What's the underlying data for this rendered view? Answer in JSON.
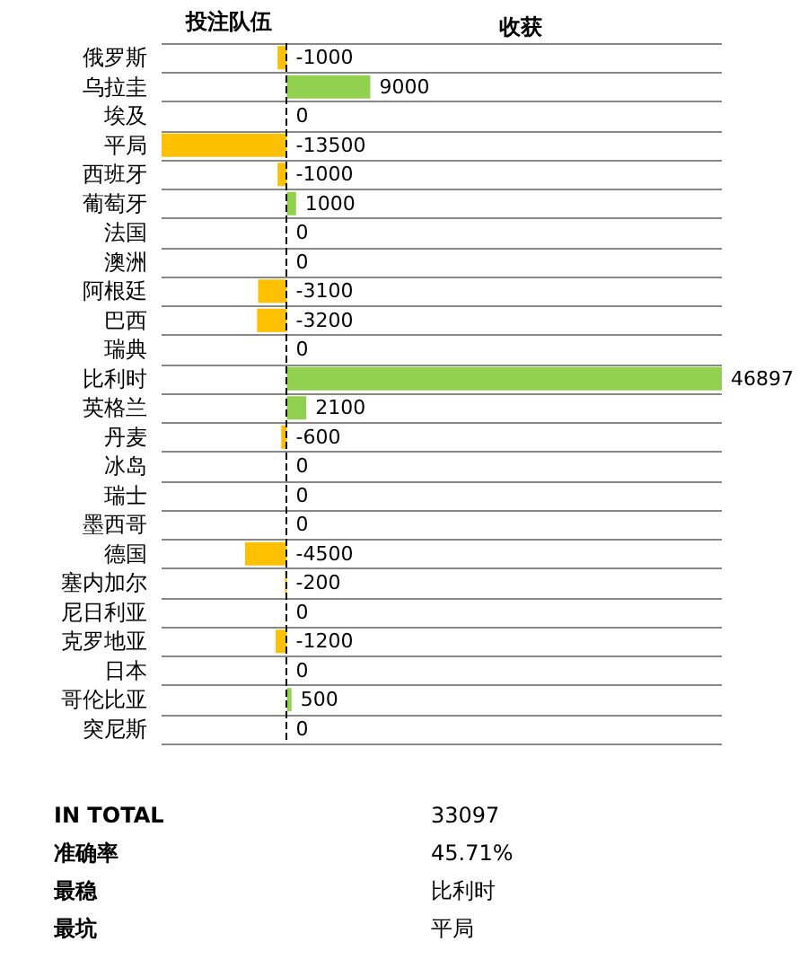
{
  "chart_data": {
    "type": "bar",
    "orientation": "horizontal",
    "title": "收获",
    "ylabel": "投注队伍",
    "categories": [
      "俄罗斯",
      "乌拉圭",
      "埃及",
      "平局",
      "西班牙",
      "葡萄牙",
      "法国",
      "澳洲",
      "阿根廷",
      "巴西",
      "瑞典",
      "比利时",
      "英格兰",
      "丹麦",
      "冰岛",
      "瑞士",
      "墨西哥",
      "德国",
      "塞内加尔",
      "尼日利亚",
      "克罗地亚",
      "日本",
      "哥伦比亚",
      "突尼斯"
    ],
    "values": [
      -1000,
      9000,
      0,
      -13500,
      -1000,
      1000,
      0,
      0,
      -3100,
      -3200,
      0,
      46897,
      2100,
      -600,
      0,
      0,
      0,
      -4500,
      -200,
      0,
      -1200,
      0,
      500,
      0
    ],
    "colors": [
      "#ffc000",
      "#92d050",
      "#92d050",
      "#ffc000",
      "#ffc000",
      "#92d050",
      "#92d050",
      "#92d050",
      "#ffc000",
      "#ffc000",
      "#92d050",
      "#92d050",
      "#92d050",
      "#ffc000",
      "#92d050",
      "#92d050",
      "#92d050",
      "#ffc000",
      "#ffc000",
      "#92d050",
      "#ffc000",
      "#92d050",
      "#92d050",
      "#92d050"
    ],
    "data_labels": true,
    "grid": "y",
    "ref_lines": [
      {
        "axis": "x",
        "value": 0,
        "color": "#000000",
        "line_style": "dashed"
      }
    ],
    "annotations": [
      "IN TOTAL",
      "33097",
      "准确率",
      "45.71%",
      "最稳",
      "比利时",
      "最坑",
      "平局"
    ]
  }
}
